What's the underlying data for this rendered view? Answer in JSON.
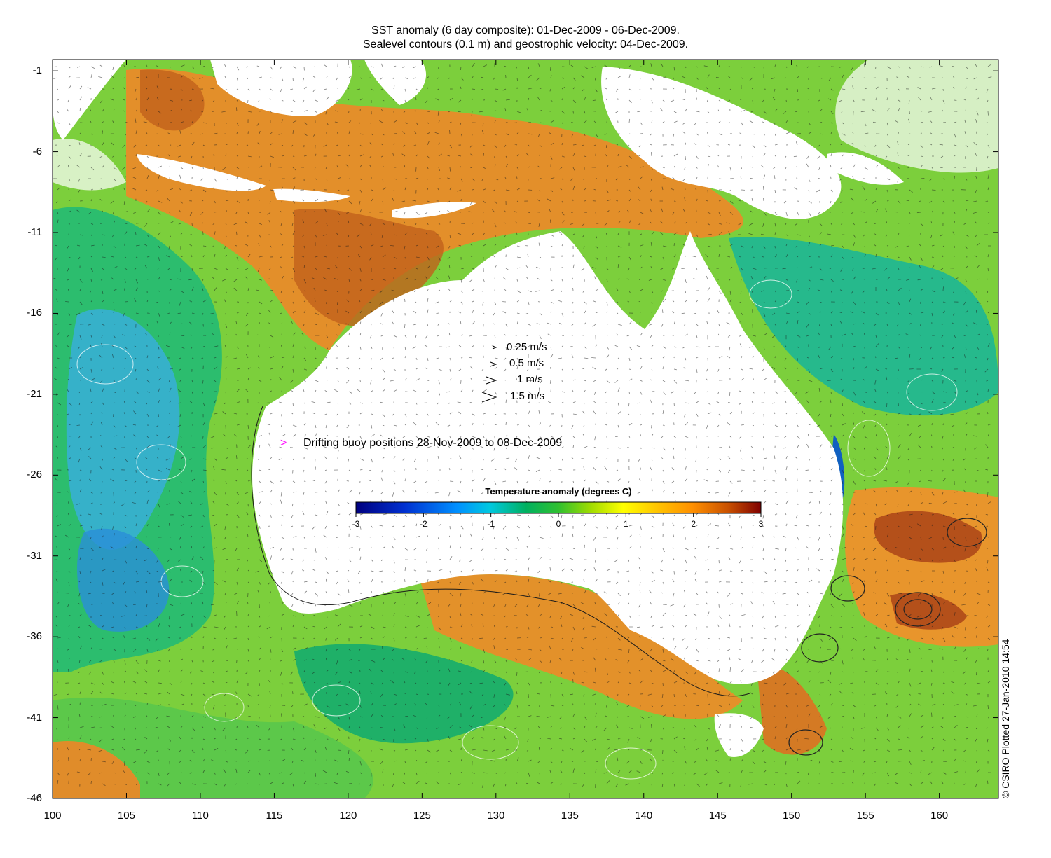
{
  "title": {
    "line1": "SST anomaly (6 day composite): 01-Dec-2009 - 06-Dec-2009.",
    "line2": "Sealevel contours (0.1 m) and geostrophic velocity: 04-Dec-2009."
  },
  "axes": {
    "x_ticks": [
      "100",
      "105",
      "110",
      "115",
      "120",
      "125",
      "130",
      "135",
      "140",
      "145",
      "150",
      "155",
      "160"
    ],
    "y_ticks": [
      "-1",
      "-6",
      "-11",
      "-16",
      "-21",
      "-26",
      "-31",
      "-36",
      "-41",
      "-46"
    ]
  },
  "velocity_legend": [
    "0.25 m/s",
    "0.5 m/s",
    "1 m/s",
    "1.5 m/s"
  ],
  "buoy_legend": {
    "marker": ">",
    "text": "Drifting buoy positions 28-Nov-2009 to 08-Dec-2009",
    "color": "#ff00ff"
  },
  "colorbar": {
    "title": "Temperature anomaly (degrees C)",
    "ticks": [
      "-3",
      "-2",
      "-1",
      "0",
      "1",
      "2",
      "3"
    ],
    "range": [
      -3,
      3
    ],
    "colors": [
      "#00007f",
      "#0000ff",
      "#0080ff",
      "#00c8ff",
      "#00c864",
      "#32c832",
      "#aadc00",
      "#ffff00",
      "#ffc800",
      "#ff8c00",
      "#c85000",
      "#7f0000"
    ]
  },
  "credit": "© CSIRO Plotted 27-Jan-2010 14:54",
  "map_colors": {
    "ocean_base": "#7ccf3c",
    "warm": "#e3912a",
    "hot": "#b8551a",
    "cool": "#21b36a",
    "cold": "#28a5d6",
    "land": "#ffffff",
    "missing": "#ffffff"
  }
}
